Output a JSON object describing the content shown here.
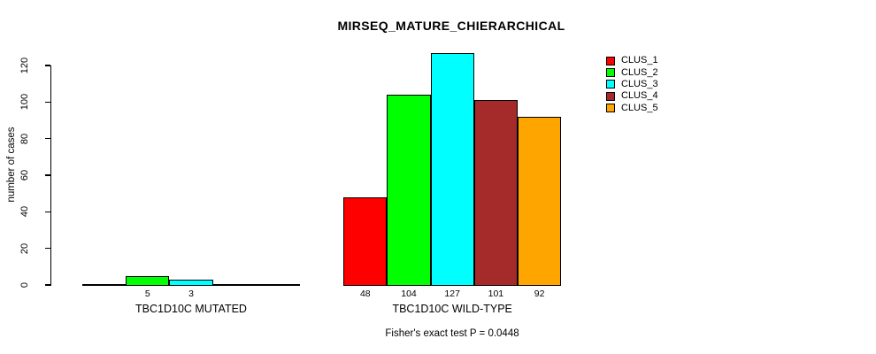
{
  "chart_data": {
    "type": "bar",
    "title": "MIRSEQ_MATURE_CHIERARCHICAL",
    "ylabel": "number of cases",
    "ylim": [
      0,
      120
    ],
    "yticks": [
      0,
      20,
      40,
      60,
      80,
      100,
      120
    ],
    "grid": false,
    "legend_position": "top-right",
    "series_colors": [
      "#FF0000",
      "#00FF00",
      "#00FFFF",
      "#A52A2A",
      "#FFA500"
    ],
    "legend": [
      {
        "label": "CLUS_1",
        "color": "#FF0000"
      },
      {
        "label": "CLUS_2",
        "color": "#00FF00"
      },
      {
        "label": "CLUS_3",
        "color": "#00FFFF"
      },
      {
        "label": "CLUS_4",
        "color": "#A52A2A"
      },
      {
        "label": "CLUS_5",
        "color": "#FFA500"
      }
    ],
    "groups": [
      {
        "label": "TBC1D10C MUTATED",
        "values": [
          0,
          5,
          3,
          0,
          0
        ],
        "visible_value_labels": [
          "5",
          "3"
        ]
      },
      {
        "label": "TBC1D10C WILD-TYPE",
        "values": [
          48,
          104,
          127,
          101,
          92
        ],
        "visible_value_labels": [
          "48",
          "104",
          "127",
          "101",
          "92"
        ]
      }
    ],
    "footnote": "Fisher's exact test P = 0.0448"
  }
}
